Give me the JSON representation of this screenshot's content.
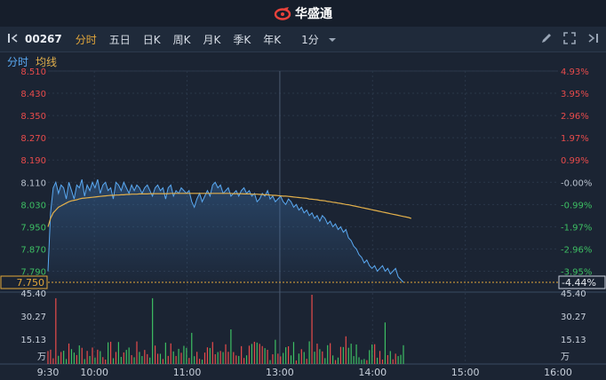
{
  "header": {
    "brand": "华盛通"
  },
  "toolbar": {
    "code": "00267",
    "tabs": [
      {
        "label": "分时",
        "active": true
      },
      {
        "label": "五日",
        "active": false
      },
      {
        "label": "日K",
        "active": false
      },
      {
        "label": "周K",
        "active": false
      },
      {
        "label": "月K",
        "active": false
      },
      {
        "label": "季K",
        "active": false
      },
      {
        "label": "年K",
        "active": false
      }
    ],
    "period": "1分"
  },
  "legend": {
    "time_label": "分时",
    "avg_label": "均线"
  },
  "colors": {
    "price": "#5aa9f2",
    "avg": "#e3b04b",
    "up": "#e84b4b",
    "down": "#3dbf63",
    "neutral": "#b9c2ce"
  },
  "chart_data": {
    "type": "line",
    "prev_close": 8.11,
    "price_ticks": [
      "8.510",
      "8.430",
      "8.350",
      "8.270",
      "8.190",
      "8.110",
      "8.030",
      "7.950",
      "7.870",
      "7.790"
    ],
    "pct_ticks": [
      "4.93%",
      "3.95%",
      "2.96%",
      "1.97%",
      "0.99%",
      "-0.00%",
      "-0.99%",
      "-1.97%",
      "-2.96%",
      "-3.95%"
    ],
    "current_price": "7.750",
    "current_pct": "-4.44%",
    "volume_ticks": [
      "45.40",
      "30.27",
      "15.13"
    ],
    "volume_unit": "万",
    "time_labels": [
      "9:30",
      "10:00",
      "11:00",
      "13:00",
      "14:00",
      "15:00",
      "16:00"
    ],
    "series": [
      {
        "values": [
          7.79,
          8.0,
          8.09,
          8.11,
          8.07,
          8.1,
          8.09,
          8.05,
          8.11,
          8.08,
          8.05,
          8.1,
          8.09,
          8.12,
          8.06,
          8.1,
          8.08,
          8.11,
          8.09,
          8.12,
          8.07,
          8.1,
          8.11,
          8.08,
          8.09,
          8.05,
          8.11,
          8.1,
          8.08,
          8.11,
          8.09,
          8.07,
          8.1,
          8.08,
          8.1,
          8.09,
          8.07,
          8.09,
          8.1,
          8.08,
          8.06,
          8.09,
          8.1,
          8.08,
          8.09,
          8.05,
          8.09,
          8.1,
          8.06,
          8.08,
          8.07,
          8.09,
          8.08,
          8.07,
          8.08,
          8.04,
          8.02,
          8.05,
          8.07,
          8.04,
          8.06,
          8.08,
          8.06,
          8.1,
          8.11,
          8.09,
          8.1,
          8.07,
          8.08,
          8.09,
          8.06,
          8.07,
          8.08,
          8.06,
          8.08,
          8.09,
          8.07,
          8.08,
          8.06,
          8.07,
          8.04,
          8.05,
          8.07,
          8.06,
          8.08,
          8.05,
          8.06,
          8.04,
          8.05,
          8.06,
          8.04,
          8.03,
          8.05,
          8.04,
          8.02,
          8.03,
          8.01,
          8.02,
          8.0,
          8.01,
          7.99,
          8.0,
          7.98,
          7.99,
          7.97,
          7.99,
          7.98,
          7.96,
          7.97,
          7.95,
          7.96,
          7.94,
          7.95,
          7.93,
          7.94,
          7.91,
          7.9,
          7.88,
          7.87,
          7.85,
          7.84,
          7.82,
          7.83,
          7.81,
          7.8,
          7.81,
          7.79,
          7.8,
          7.81,
          7.79,
          7.8,
          7.78,
          7.79,
          7.8,
          7.77,
          7.76,
          7.75
        ]
      },
      {
        "values": [
          7.95,
          7.98,
          8.0,
          8.01,
          8.02,
          8.025,
          8.03,
          8.035,
          8.04,
          8.043,
          8.045,
          8.047,
          8.05,
          8.052,
          8.053,
          8.054,
          8.055,
          8.056,
          8.057,
          8.058,
          8.059,
          8.06,
          8.061,
          8.062,
          8.063,
          8.063,
          8.064,
          8.064,
          8.065,
          8.065,
          8.066,
          8.066,
          8.067,
          8.067,
          8.067,
          8.068,
          8.068,
          8.068,
          8.068,
          8.069,
          8.069,
          8.069,
          8.069,
          8.069,
          8.069,
          8.069,
          8.069,
          8.07,
          8.07,
          8.07,
          8.07,
          8.07,
          8.07,
          8.07,
          8.07,
          8.07,
          8.07,
          8.07,
          8.07,
          8.07,
          8.07,
          8.07,
          8.07,
          8.07,
          8.07,
          8.07,
          8.07,
          8.07,
          8.07,
          8.07,
          8.07,
          8.069,
          8.069,
          8.069,
          8.069,
          8.068,
          8.068,
          8.068,
          8.067,
          8.067,
          8.067,
          8.066,
          8.066,
          8.065,
          8.065,
          8.064,
          8.063,
          8.063,
          8.062,
          8.061,
          8.06,
          8.06,
          8.059,
          8.058,
          8.057,
          8.056,
          8.055,
          8.054,
          8.053,
          8.052,
          8.05,
          8.049,
          8.048,
          8.047,
          8.045,
          8.044,
          8.043,
          8.041,
          8.04,
          8.038,
          8.037,
          8.035,
          8.034,
          8.032,
          8.03,
          8.029,
          8.027,
          8.025,
          8.023,
          8.021,
          8.019,
          8.017,
          8.015,
          8.013,
          8.011,
          8.009,
          8.007,
          8.005,
          8.003,
          8.001,
          7.999,
          7.997,
          7.995,
          7.993,
          7.991,
          7.989,
          7.987,
          7.985,
          7.983,
          7.98
        ]
      }
    ]
  }
}
